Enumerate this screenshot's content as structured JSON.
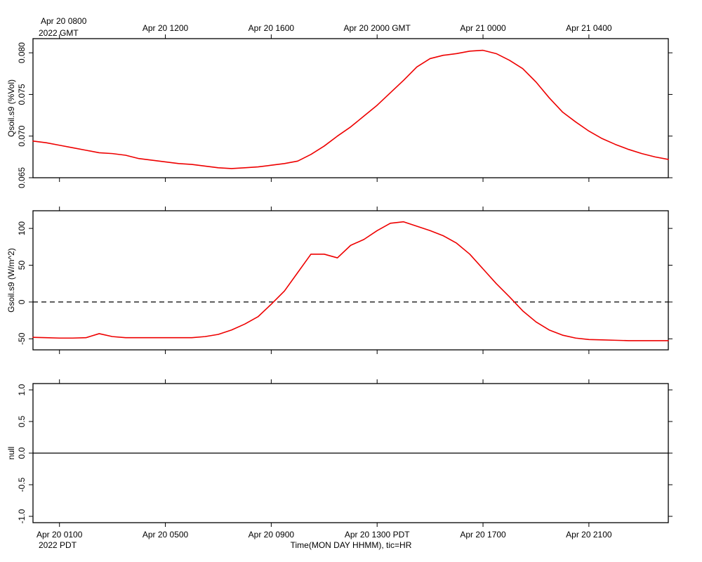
{
  "time_axes": {
    "top": {
      "ticks": [
        "Apr 20 0800",
        "Apr 20 1200",
        "Apr 20 1600",
        "Apr 20 2000 GMT",
        "Apr 21 0000",
        "Apr 21 0400"
      ],
      "year_label": "2022 GMT"
    },
    "bottom": {
      "ticks": [
        "Apr 20 0100",
        "Apr 20 0500",
        "Apr 20 0900",
        "Apr 20 1300 PDT",
        "Apr 20 1700",
        "Apr 20 2100"
      ],
      "year_label": "2022 PDT",
      "xlabel": "Time(MON DAY HHMM), tic=HR"
    }
  },
  "colors": {
    "series": "#ee0000",
    "axis": "#000000",
    "zero_line": "#000000"
  },
  "chart_data": [
    {
      "type": "line",
      "title": "",
      "xlabel": "",
      "ylabel": "Qsoil.s9 (%Vol)",
      "ylim": [
        0.065,
        0.0817
      ],
      "yticks": [
        0.065,
        0.07,
        0.075,
        0.08
      ],
      "ytick_labels": [
        "0.065",
        "0.070",
        "0.075",
        "0.080"
      ],
      "x_unit": "hours since Apr 20 0000 PDT (Apr 20 0700 GMT)",
      "xlim": [
        0.0,
        24.0
      ],
      "grid": false,
      "series": [
        {
          "x": [
            0.0,
            0.5,
            1.0,
            1.5,
            2.0,
            2.5,
            3.0,
            3.5,
            4.0,
            4.5,
            5.0,
            5.5,
            6.0,
            6.5,
            7.0,
            7.5,
            8.0,
            8.5,
            9.0,
            9.5,
            10.0,
            10.5,
            11.0,
            11.5,
            12.0,
            12.5,
            13.0,
            13.5,
            14.0,
            14.5,
            15.0,
            15.5,
            16.0,
            16.5,
            17.0,
            17.5,
            18.0,
            18.5,
            19.0,
            19.5,
            20.0,
            20.5,
            21.0,
            21.5,
            22.0,
            22.5,
            23.0,
            23.5,
            24.0
          ],
          "values": [
            0.0694,
            0.0692,
            0.0689,
            0.0686,
            0.0683,
            0.068,
            0.0679,
            0.0677,
            0.0673,
            0.0671,
            0.0669,
            0.0667,
            0.0666,
            0.0664,
            0.0662,
            0.0661,
            0.0662,
            0.0663,
            0.0665,
            0.0667,
            0.067,
            0.0678,
            0.0688,
            0.07,
            0.0711,
            0.0724,
            0.0737,
            0.0752,
            0.0767,
            0.0783,
            0.0793,
            0.0797,
            0.0799,
            0.0802,
            0.0803,
            0.0799,
            0.0791,
            0.0781,
            0.0765,
            0.0746,
            0.0729,
            0.0717,
            0.0706,
            0.0697,
            0.069,
            0.0684,
            0.0679,
            0.0675,
            0.0672
          ]
        }
      ]
    },
    {
      "type": "line",
      "title": "",
      "xlabel": "",
      "ylabel": "Gsoil.s9 (W/m^2)",
      "ylim": [
        -65,
        124
      ],
      "yticks": [
        -50,
        0,
        50,
        100
      ],
      "ytick_labels": [
        "-50",
        "0",
        "50",
        "100"
      ],
      "reference_line": {
        "y": 0,
        "style": "dashed"
      },
      "x_unit": "hours since Apr 20 0000 PDT (Apr 20 0700 GMT)",
      "xlim": [
        0.0,
        24.0
      ],
      "grid": false,
      "series": [
        {
          "x": [
            0.0,
            0.5,
            1.0,
            1.5,
            2.0,
            2.5,
            3.0,
            3.5,
            4.0,
            4.5,
            5.0,
            5.5,
            6.0,
            6.5,
            7.0,
            7.5,
            8.0,
            8.5,
            9.0,
            9.5,
            10.0,
            10.5,
            11.0,
            11.5,
            12.0,
            12.5,
            13.0,
            13.5,
            14.0,
            14.5,
            15.0,
            15.5,
            16.0,
            16.5,
            17.0,
            17.5,
            18.0,
            18.5,
            19.0,
            19.5,
            20.0,
            20.5,
            21.0,
            21.5,
            22.0,
            22.5,
            23.0,
            23.5,
            24.0
          ],
          "values": [
            -48,
            -48.5,
            -49,
            -49,
            -48.5,
            -43,
            -47,
            -48.5,
            -48.5,
            -48.5,
            -48.5,
            -48.5,
            -48.5,
            -47,
            -44,
            -38,
            -30,
            -20,
            -3,
            15,
            40,
            65,
            65,
            60,
            77,
            85,
            97,
            107,
            109,
            103,
            97,
            90,
            80,
            65,
            45,
            25,
            7,
            -12,
            -27,
            -38,
            -45,
            -49,
            -51,
            -51.5,
            -52,
            -52.5,
            -52.5,
            -52.5,
            -52.5
          ]
        }
      ]
    },
    {
      "type": "line",
      "title": "",
      "xlabel": "",
      "ylabel": "null",
      "ylim": [
        -1.1,
        1.1
      ],
      "yticks": [
        -1.0,
        -0.5,
        0.0,
        0.5,
        1.0
      ],
      "ytick_labels": [
        "-1.0",
        "-0.5",
        "0.0",
        "0.5",
        "1.0"
      ],
      "x_unit": "hours since Apr 20 0000 PDT (Apr 20 0700 GMT)",
      "xlim": [
        0.0,
        24.0
      ],
      "grid": false,
      "series": [
        {
          "x": [
            0.0,
            24.0
          ],
          "values": [
            0.0,
            0.0
          ]
        }
      ]
    }
  ]
}
